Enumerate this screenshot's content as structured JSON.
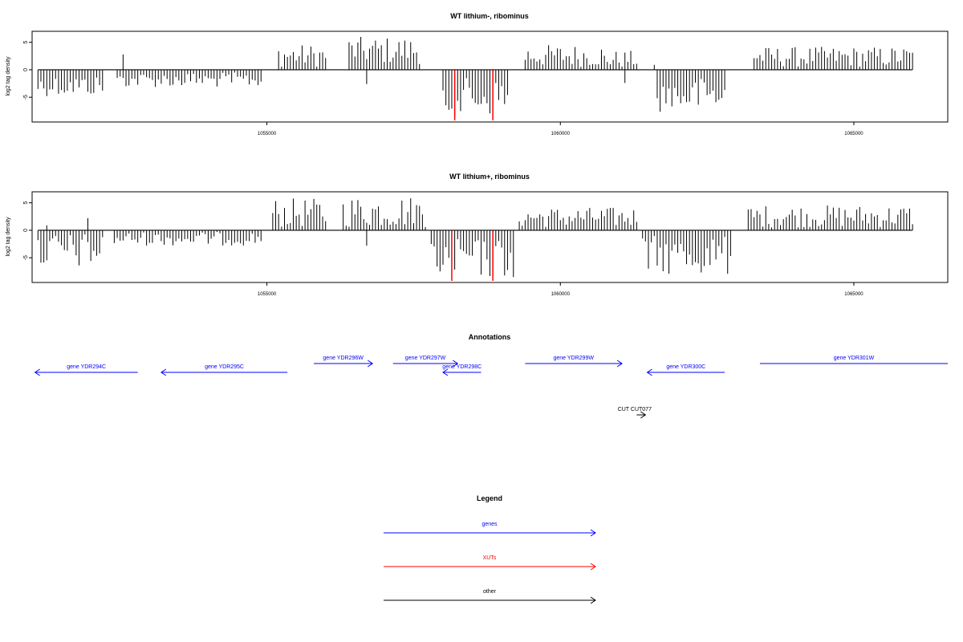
{
  "chart_data": [
    {
      "type": "bar",
      "title": "WT lithium-, ribominus",
      "xlabel": "",
      "ylabel": "log2 tag density",
      "xlim": [
        1051000,
        1066600
      ],
      "ylim": [
        -9.5,
        7
      ],
      "x_ticks": [
        1055000,
        1060000,
        1065000
      ],
      "y_ticks": [
        -5,
        0,
        5
      ],
      "grid": false,
      "series": [
        {
          "color": "#000000",
          "segments": [
            {
              "start": 1051100,
              "end": 1052200,
              "min": -4.8,
              "max": -1.0
            },
            {
              "start": 1052450,
              "end": 1054900,
              "min": -3.2,
              "max": -0.5
            },
            {
              "start": 1055200,
              "end": 1056000,
              "min": 0.5,
              "max": 4.6
            },
            {
              "start": 1056400,
              "end": 1057600,
              "min": 1.0,
              "max": 6.0
            },
            {
              "start": 1058000,
              "end": 1059100,
              "min": -8.5,
              "max": -1.5
            },
            {
              "start": 1059400,
              "end": 1060700,
              "min": 0.5,
              "max": 4.6
            },
            {
              "start": 1060700,
              "end": 1061300,
              "min": 0.3,
              "max": 3.5
            },
            {
              "start": 1061650,
              "end": 1062800,
              "min": -7.8,
              "max": -1.5
            },
            {
              "start": 1063300,
              "end": 1066000,
              "min": 0.5,
              "max": 4.2
            }
          ],
          "spikes": [
            {
              "x": 1052550,
              "y": 2.8
            },
            {
              "x": 1056700,
              "y": -2.6
            },
            {
              "x": 1061100,
              "y": -2.4
            },
            {
              "x": 1061600,
              "y": 0.9
            }
          ]
        },
        {
          "color": "#ff0000",
          "spikes": [
            {
              "x": 1058200,
              "y": -9.2
            },
            {
              "x": 1058850,
              "y": -9.2
            }
          ]
        }
      ]
    },
    {
      "type": "bar",
      "title": "WT lithium+, ribominus",
      "xlabel": "",
      "ylabel": "log2 tag density",
      "xlim": [
        1051000,
        1066600
      ],
      "ylim": [
        -9.5,
        7
      ],
      "x_ticks": [
        1055000,
        1060000,
        1065000
      ],
      "y_ticks": [
        -5,
        0,
        5
      ],
      "grid": false,
      "series": [
        {
          "color": "#000000",
          "segments": [
            {
              "start": 1051100,
              "end": 1052200,
              "min": -7.0,
              "max": -0.5
            },
            {
              "start": 1052400,
              "end": 1054900,
              "min": -2.8,
              "max": -0.3
            },
            {
              "start": 1055100,
              "end": 1056000,
              "min": 0.5,
              "max": 5.8
            },
            {
              "start": 1056300,
              "end": 1057700,
              "min": 0.5,
              "max": 6.3
            },
            {
              "start": 1057800,
              "end": 1059200,
              "min": -8.8,
              "max": -1.5
            },
            {
              "start": 1059300,
              "end": 1061300,
              "min": 0.5,
              "max": 4.2
            },
            {
              "start": 1061400,
              "end": 1062900,
              "min": -8.2,
              "max": -1.0
            },
            {
              "start": 1063200,
              "end": 1066000,
              "min": 0.5,
              "max": 4.6
            }
          ],
          "spikes": [
            {
              "x": 1051250,
              "y": 0.9
            },
            {
              "x": 1051950,
              "y": 2.2
            },
            {
              "x": 1056700,
              "y": -2.8
            },
            {
              "x": 1057500,
              "y": 1.3
            }
          ]
        },
        {
          "color": "#ff0000",
          "spikes": [
            {
              "x": 1058150,
              "y": -9.2
            },
            {
              "x": 1058850,
              "y": -9.2
            }
          ]
        }
      ]
    }
  ],
  "annotations": {
    "title": "Annotations",
    "items": [
      {
        "label": "gene YDR294C",
        "start": 1051050,
        "end": 1052800,
        "strand": "-",
        "row": 2,
        "color": "#0000ff"
      },
      {
        "label": "gene YDR295C",
        "start": 1053200,
        "end": 1055350,
        "strand": "-",
        "row": 2,
        "color": "#0000ff"
      },
      {
        "label": "gene YDR296W",
        "start": 1055800,
        "end": 1056800,
        "strand": "+",
        "row": 1,
        "color": "#0000ff"
      },
      {
        "label": "gene YDR297W",
        "start": 1057150,
        "end": 1058250,
        "strand": "+",
        "row": 1,
        "color": "#0000ff"
      },
      {
        "label": "gene YDR298C",
        "start": 1058000,
        "end": 1058650,
        "strand": "-",
        "row": 2,
        "color": "#0000ff"
      },
      {
        "label": "gene YDR299W",
        "start": 1059400,
        "end": 1061050,
        "strand": "+",
        "row": 1,
        "color": "#0000ff"
      },
      {
        "label": "gene YDR300C",
        "start": 1061480,
        "end": 1062800,
        "strand": "-",
        "row": 2,
        "color": "#0000ff"
      },
      {
        "label": "gene YDR301W",
        "start": 1063400,
        "end": 1066600,
        "strand": "+",
        "row": 1,
        "color": "#0000ff"
      },
      {
        "label": "CUT CUT077",
        "start": 1061300,
        "end": 1061450,
        "strand": "+",
        "row": 3,
        "color": "#000000"
      }
    ]
  },
  "legend": {
    "title": "Legend",
    "entries": [
      {
        "label": "genes",
        "color": "#0000ff"
      },
      {
        "label": "XUTs",
        "color": "#ff0000"
      },
      {
        "label": "other",
        "color": "#000000"
      }
    ]
  }
}
